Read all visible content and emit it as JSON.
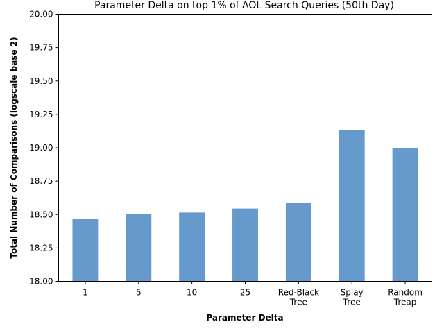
{
  "chart_data": {
    "type": "bar",
    "title": "Parameter Delta on top 1% of AOL Search Queries (50th Day)",
    "xlabel": "Parameter Delta",
    "ylabel": "Total Number of Comparisons (logscale base 2)",
    "categories": [
      [
        "1"
      ],
      [
        "5"
      ],
      [
        "10"
      ],
      [
        "25"
      ],
      [
        "Red-Black",
        "Tree"
      ],
      [
        "Splay",
        "Tree"
      ],
      [
        "Random",
        "Treap"
      ]
    ],
    "values": [
      18.47,
      18.505,
      18.515,
      18.545,
      18.585,
      19.13,
      18.995
    ],
    "ylim": [
      18.0,
      20.0
    ],
    "yticks": [
      "18.00",
      "18.25",
      "18.50",
      "18.75",
      "19.00",
      "19.25",
      "19.50",
      "19.75",
      "20.00"
    ],
    "bar_color": "#6699cc",
    "grid": false
  }
}
